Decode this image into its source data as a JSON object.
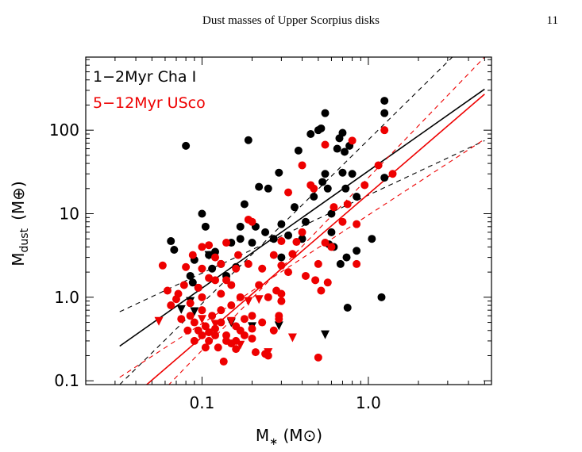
{
  "page": {
    "running_header": "Dust masses of Upper Scorpius disks",
    "page_number": "11"
  },
  "chart_data": {
    "type": "scatter",
    "xlabel": "M∗ (M⊙)",
    "ylabel": "Mdust (M⊕)",
    "x_scale": "log",
    "y_scale": "log",
    "xlim": [
      0.02,
      5.5
    ],
    "ylim": [
      0.09,
      750
    ],
    "x_ticks": [
      {
        "value": 0.1,
        "label": "0.1"
      },
      {
        "value": 1.0,
        "label": "1.0"
      }
    ],
    "y_ticks": [
      {
        "value": 0.1,
        "label": "0.1"
      },
      {
        "value": 1.0,
        "label": "1.0"
      },
      {
        "value": 10,
        "label": "10"
      },
      {
        "value": 100,
        "label": "100"
      }
    ],
    "grid": false,
    "legend": {
      "placement": "top-left",
      "entries": [
        {
          "label": "1−2Myr Cha I",
          "color": "#000000"
        },
        {
          "label": "5−12Myr USco",
          "color": "#ee0000"
        }
      ]
    },
    "series": [
      {
        "color": "#000000",
        "detections": [
          [
            0.065,
            4.7
          ],
          [
            0.068,
            3.7
          ],
          [
            0.08,
            65
          ],
          [
            0.085,
            1.8
          ],
          [
            0.088,
            1.5
          ],
          [
            0.09,
            2.8
          ],
          [
            0.095,
            1.3
          ],
          [
            0.1,
            10
          ],
          [
            0.105,
            7
          ],
          [
            0.11,
            3.2
          ],
          [
            0.115,
            2.2
          ],
          [
            0.12,
            3.5
          ],
          [
            0.13,
            2.5
          ],
          [
            0.14,
            1.8
          ],
          [
            0.15,
            4.5
          ],
          [
            0.16,
            2.3
          ],
          [
            0.17,
            7
          ],
          [
            0.17,
            5
          ],
          [
            0.18,
            13
          ],
          [
            0.19,
            76
          ],
          [
            0.2,
            4.5
          ],
          [
            0.21,
            7
          ],
          [
            0.22,
            21
          ],
          [
            0.24,
            6
          ],
          [
            0.25,
            20
          ],
          [
            0.27,
            5
          ],
          [
            0.29,
            31
          ],
          [
            0.3,
            7.5
          ],
          [
            0.3,
            3
          ],
          [
            0.33,
            5.5
          ],
          [
            0.36,
            12
          ],
          [
            0.38,
            57
          ],
          [
            0.4,
            5
          ],
          [
            0.42,
            8
          ],
          [
            0.45,
            90
          ],
          [
            0.47,
            16
          ],
          [
            0.5,
            100
          ],
          [
            0.52,
            105
          ],
          [
            0.53,
            24
          ],
          [
            0.55,
            160
          ],
          [
            0.55,
            30
          ],
          [
            0.57,
            20
          ],
          [
            0.58,
            4.3
          ],
          [
            0.6,
            10
          ],
          [
            0.6,
            6
          ],
          [
            0.62,
            4
          ],
          [
            0.65,
            60
          ],
          [
            0.67,
            80
          ],
          [
            0.68,
            2.5
          ],
          [
            0.7,
            93
          ],
          [
            0.7,
            31
          ],
          [
            0.72,
            55
          ],
          [
            0.73,
            20
          ],
          [
            0.74,
            3
          ],
          [
            0.75,
            0.75
          ],
          [
            0.77,
            65
          ],
          [
            0.8,
            30
          ],
          [
            0.85,
            16
          ],
          [
            0.85,
            3.6
          ],
          [
            1.05,
            5
          ],
          [
            1.2,
            1.0
          ],
          [
            1.25,
            225
          ],
          [
            1.25,
            160
          ],
          [
            1.25,
            27
          ]
        ],
        "upper_limits": [
          [
            0.075,
            0.72
          ],
          [
            0.085,
            0.9
          ],
          [
            0.09,
            0.68
          ],
          [
            0.11,
            3.2
          ],
          [
            0.15,
            0.5
          ],
          [
            0.2,
            0.45
          ],
          [
            0.29,
            0.46
          ],
          [
            0.55,
            0.36
          ]
        ],
        "fit": {
          "x": [
            0.032,
            5.0
          ],
          "y": [
            0.26,
            310
          ]
        },
        "confidence_band": [
          {
            "x": [
              0.032,
              5.0
            ],
            "y": [
              0.67,
              75
            ]
          },
          {
            "x": [
              0.032,
              5.0
            ],
            "y": [
              0.09,
              1800
            ]
          }
        ]
      },
      {
        "color": "#ee0000",
        "detections": [
          [
            0.058,
            2.4
          ],
          [
            0.062,
            1.2
          ],
          [
            0.065,
            0.8
          ],
          [
            0.07,
            0.95
          ],
          [
            0.072,
            1.1
          ],
          [
            0.075,
            0.55
          ],
          [
            0.078,
            1.4
          ],
          [
            0.08,
            2.3
          ],
          [
            0.082,
            0.4
          ],
          [
            0.085,
            0.6
          ],
          [
            0.085,
            0.85
          ],
          [
            0.088,
            3.2
          ],
          [
            0.09,
            0.5
          ],
          [
            0.09,
            0.3
          ],
          [
            0.095,
            0.4
          ],
          [
            0.095,
            1.3
          ],
          [
            0.1,
            0.35
          ],
          [
            0.1,
            0.7
          ],
          [
            0.1,
            1.0
          ],
          [
            0.1,
            2.2
          ],
          [
            0.1,
            4
          ],
          [
            0.105,
            0.25
          ],
          [
            0.105,
            0.45
          ],
          [
            0.11,
            0.38
          ],
          [
            0.11,
            0.3
          ],
          [
            0.11,
            1.7
          ],
          [
            0.11,
            4.2
          ],
          [
            0.115,
            0.6
          ],
          [
            0.12,
            0.35
          ],
          [
            0.12,
            0.42
          ],
          [
            0.12,
            1.6
          ],
          [
            0.12,
            3
          ],
          [
            0.125,
            0.25
          ],
          [
            0.13,
            0.5
          ],
          [
            0.13,
            0.7
          ],
          [
            0.13,
            1.1
          ],
          [
            0.13,
            2.5
          ],
          [
            0.135,
            0.17
          ],
          [
            0.14,
            0.35
          ],
          [
            0.14,
            0.3
          ],
          [
            0.14,
            1.6
          ],
          [
            0.14,
            4.5
          ],
          [
            0.15,
            0.28
          ],
          [
            0.15,
            0.8
          ],
          [
            0.15,
            1.4
          ],
          [
            0.16,
            0.45
          ],
          [
            0.16,
            0.3
          ],
          [
            0.16,
            0.24
          ],
          [
            0.16,
            2.2
          ],
          [
            0.165,
            3.2
          ],
          [
            0.17,
            0.4
          ],
          [
            0.17,
            1
          ],
          [
            0.18,
            0.55
          ],
          [
            0.18,
            0.35
          ],
          [
            0.19,
            2.5
          ],
          [
            0.19,
            8.5
          ],
          [
            0.2,
            0.6
          ],
          [
            0.2,
            0.32
          ],
          [
            0.2,
            0.42
          ],
          [
            0.2,
            8
          ],
          [
            0.21,
            0.22
          ],
          [
            0.22,
            1.4
          ],
          [
            0.23,
            0.5
          ],
          [
            0.23,
            2.2
          ],
          [
            0.24,
            0.21
          ],
          [
            0.25,
            0.2
          ],
          [
            0.25,
            1
          ],
          [
            0.27,
            0.4
          ],
          [
            0.27,
            3.2
          ],
          [
            0.28,
            1.2
          ],
          [
            0.29,
            0.55
          ],
          [
            0.29,
            0.6
          ],
          [
            0.3,
            1.1
          ],
          [
            0.3,
            0.9
          ],
          [
            0.3,
            4.7
          ],
          [
            0.3,
            2.4
          ],
          [
            0.33,
            2
          ],
          [
            0.33,
            18
          ],
          [
            0.35,
            3.3
          ],
          [
            0.37,
            4.6
          ],
          [
            0.4,
            6
          ],
          [
            0.4,
            38
          ],
          [
            0.42,
            1.8
          ],
          [
            0.45,
            22
          ],
          [
            0.47,
            20
          ],
          [
            0.48,
            1.6
          ],
          [
            0.5,
            0.19
          ],
          [
            0.5,
            2.5
          ],
          [
            0.52,
            1.2
          ],
          [
            0.55,
            67
          ],
          [
            0.55,
            4.5
          ],
          [
            0.57,
            1.5
          ],
          [
            0.6,
            4
          ],
          [
            0.62,
            12
          ],
          [
            0.7,
            8
          ],
          [
            0.75,
            13
          ],
          [
            0.8,
            75
          ],
          [
            0.85,
            2.5
          ],
          [
            0.85,
            7.5
          ],
          [
            0.95,
            22
          ],
          [
            1.15,
            38
          ],
          [
            1.25,
            100
          ],
          [
            1.4,
            30
          ]
        ],
        "upper_limits": [
          [
            0.055,
            0.52
          ],
          [
            0.1,
            0.55
          ],
          [
            0.12,
            0.48
          ],
          [
            0.15,
            0.52
          ],
          [
            0.17,
            0.27
          ],
          [
            0.19,
            0.9
          ],
          [
            0.22,
            0.95
          ],
          [
            0.25,
            0.22
          ],
          [
            0.35,
            0.33
          ]
        ],
        "fit": {
          "x": [
            0.033,
            5.0
          ],
          "y": [
            0.05,
            270
          ]
        },
        "confidence_band": [
          {
            "x": [
              0.032,
              5.0
            ],
            "y": [
              0.11,
              78
            ]
          },
          {
            "x": [
              0.032,
              5.0
            ],
            "y": [
              0.022,
              750
            ]
          }
        ]
      }
    ]
  }
}
